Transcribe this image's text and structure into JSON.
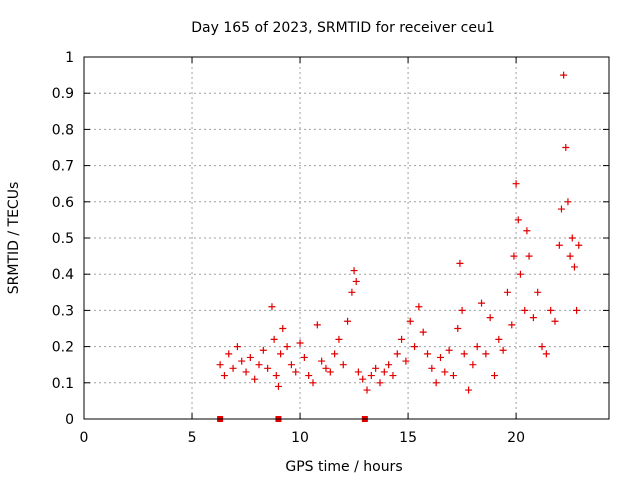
{
  "chart_data": {
    "type": "scatter",
    "title": "Day 165 of 2023, SRMTID for receiver ceu1",
    "xlabel": "GPS time / hours",
    "ylabel": "SRMTID / TECUs",
    "xlim": [
      0,
      24.3
    ],
    "ylim": [
      0,
      1
    ],
    "xticks": [
      0,
      5,
      10,
      15,
      20
    ],
    "yticks": [
      0,
      0.1,
      0.2,
      0.3,
      0.4,
      0.5,
      0.6,
      0.7,
      0.8,
      0.9,
      1
    ],
    "xtick_labels": [
      "0",
      "5",
      "10",
      "15",
      "20"
    ],
    "ytick_labels": [
      "0",
      "0.1",
      "0.2",
      "0.3",
      "0.4",
      "0.5",
      "0.6",
      "0.7",
      "0.8",
      "0.9",
      "1"
    ],
    "grid": true,
    "series": [
      {
        "name": "SRMTID",
        "marker": "plus",
        "color": "#e00000",
        "x": [
          6.3,
          6.5,
          6.7,
          6.9,
          7.1,
          7.3,
          7.5,
          7.7,
          7.9,
          8.1,
          8.3,
          8.5,
          8.7,
          8.8,
          8.9,
          9.0,
          9.1,
          9.2,
          9.4,
          9.6,
          9.8,
          10.0,
          10.2,
          10.4,
          10.6,
          10.8,
          11.0,
          11.2,
          11.4,
          11.6,
          11.8,
          12.0,
          12.2,
          12.4,
          12.5,
          12.6,
          12.7,
          12.9,
          13.1,
          13.3,
          13.5,
          13.7,
          13.9,
          14.1,
          14.3,
          14.5,
          14.7,
          14.9,
          15.1,
          15.3,
          15.5,
          15.7,
          15.9,
          16.1,
          16.3,
          16.5,
          16.7,
          16.9,
          17.1,
          17.3,
          17.4,
          17.5,
          17.6,
          17.8,
          18.0,
          18.2,
          18.4,
          18.6,
          18.8,
          19.0,
          19.2,
          19.4,
          19.6,
          19.8,
          19.9,
          20.0,
          20.1,
          20.2,
          20.4,
          20.5,
          20.6,
          20.8,
          21.0,
          21.2,
          21.4,
          21.6,
          21.8,
          22.0,
          22.1,
          22.2,
          22.3,
          22.4,
          22.5,
          22.6,
          22.7,
          22.8,
          22.9
        ],
        "y": [
          0.15,
          0.12,
          0.18,
          0.14,
          0.2,
          0.16,
          0.13,
          0.17,
          0.11,
          0.15,
          0.19,
          0.14,
          0.31,
          0.22,
          0.12,
          0.09,
          0.18,
          0.25,
          0.2,
          0.15,
          0.13,
          0.21,
          0.17,
          0.12,
          0.1,
          0.26,
          0.16,
          0.14,
          0.13,
          0.18,
          0.22,
          0.15,
          0.27,
          0.35,
          0.41,
          0.38,
          0.13,
          0.11,
          0.08,
          0.12,
          0.14,
          0.1,
          0.13,
          0.15,
          0.12,
          0.18,
          0.22,
          0.16,
          0.27,
          0.2,
          0.31,
          0.24,
          0.18,
          0.14,
          0.1,
          0.17,
          0.13,
          0.19,
          0.12,
          0.25,
          0.43,
          0.3,
          0.18,
          0.08,
          0.15,
          0.2,
          0.32,
          0.18,
          0.28,
          0.12,
          0.22,
          0.19,
          0.35,
          0.26,
          0.45,
          0.65,
          0.55,
          0.4,
          0.3,
          0.52,
          0.45,
          0.28,
          0.35,
          0.2,
          0.18,
          0.3,
          0.27,
          0.48,
          0.58,
          0.95,
          0.75,
          0.6,
          0.45,
          0.5,
          0.42,
          0.3,
          0.48
        ]
      }
    ],
    "gap_markers_x": [
      6.3,
      9.0,
      13.0
    ]
  }
}
